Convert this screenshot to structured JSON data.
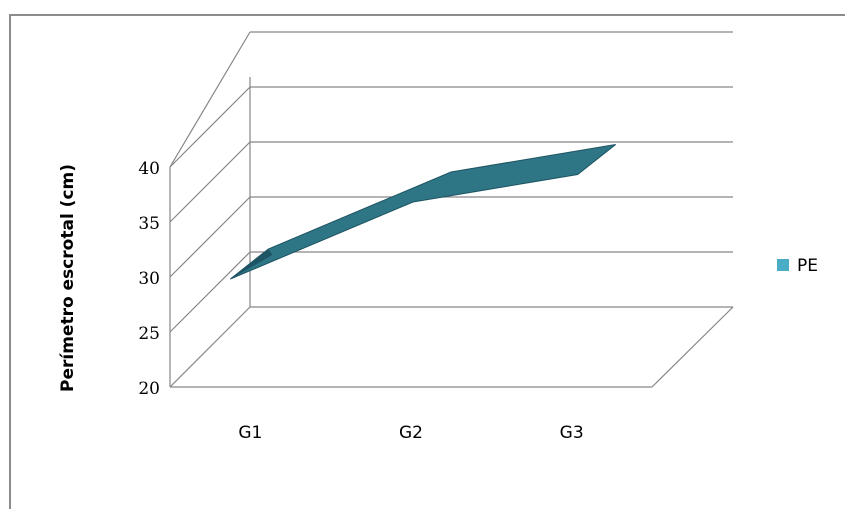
{
  "chart_data": {
    "type": "area",
    "style": "3d",
    "categories": [
      "G1",
      "G2",
      "G3"
    ],
    "series": [
      {
        "name": "PE",
        "values": [
          30,
          37,
          39.5
        ]
      }
    ],
    "ylabel": "Perímetro escrotal (cm)",
    "xlabel": "",
    "ylim": [
      20,
      40
    ],
    "yticks": [
      20,
      25,
      30,
      35,
      40
    ],
    "legend_position": "right",
    "grid": true,
    "colors": {
      "series": "#2e7585",
      "series_dark": "#1e5463",
      "legend_swatch": "#4bacc6",
      "grid": "#868686"
    }
  }
}
